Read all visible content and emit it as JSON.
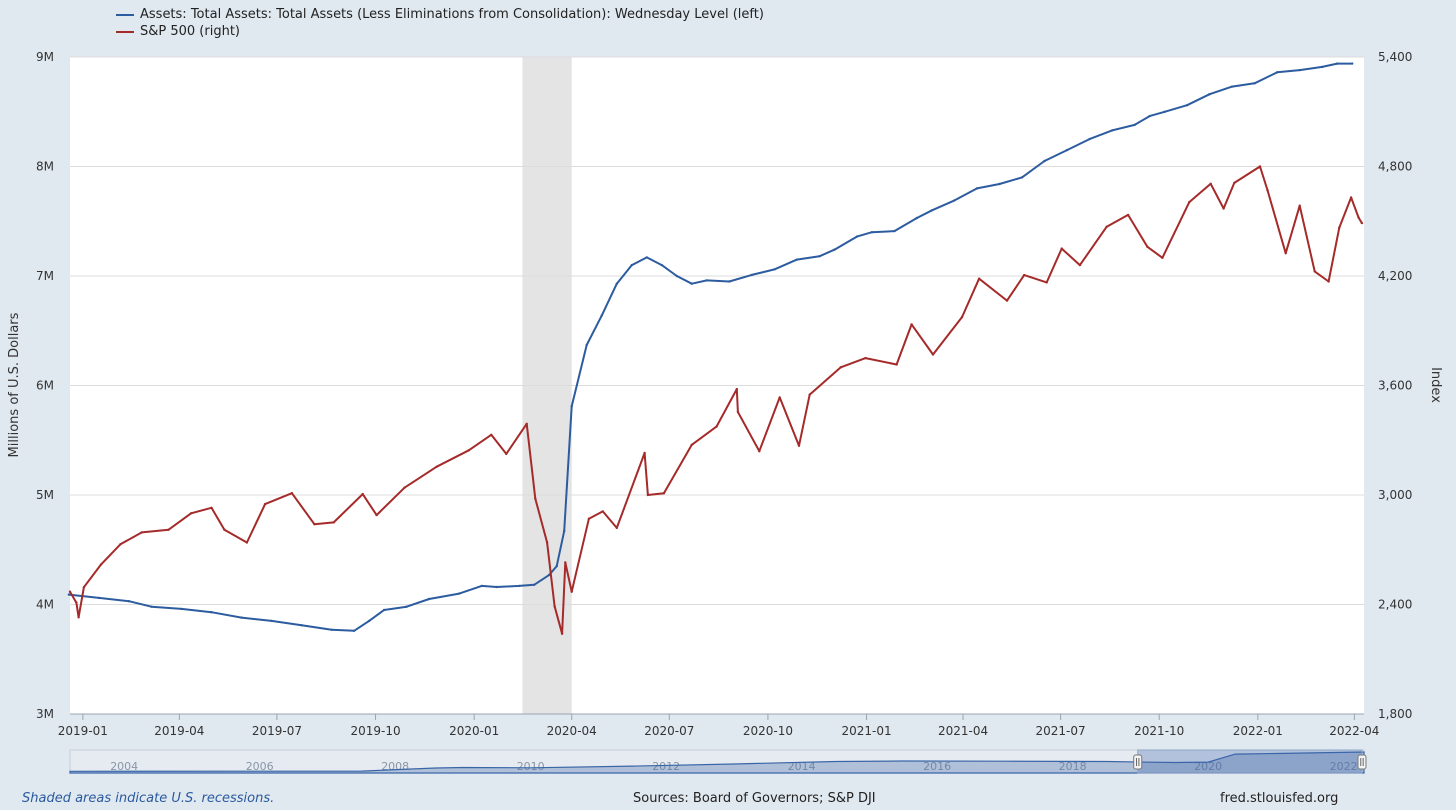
{
  "legend": [
    {
      "label": "Assets: Total Assets: Total Assets (Less Eliminations from Consolidation): Wednesday Level (left)",
      "color": "#2c5c9f"
    },
    {
      "label": "S&P 500 (right)",
      "color": "#a52a2a"
    }
  ],
  "footer": {
    "note": "Shaded areas indicate U.S. recessions.",
    "sources": "Sources: Board of Governors; S&P DJI",
    "site": "fred.stlouisfed.org"
  },
  "chart_data": {
    "type": "line",
    "title": "",
    "x_range": [
      "2018-12-20",
      "2022-04-10"
    ],
    "x_ticks": [
      {
        "date": "2019-01-01",
        "label": "2019-01"
      },
      {
        "date": "2019-04-01",
        "label": "2019-04"
      },
      {
        "date": "2019-07-01",
        "label": "2019-07"
      },
      {
        "date": "2019-10-01",
        "label": "2019-10"
      },
      {
        "date": "2020-01-01",
        "label": "2020-01"
      },
      {
        "date": "2020-04-01",
        "label": "2020-04"
      },
      {
        "date": "2020-07-01",
        "label": "2020-07"
      },
      {
        "date": "2020-10-01",
        "label": "2020-10"
      },
      {
        "date": "2021-01-01",
        "label": "2021-01"
      },
      {
        "date": "2021-04-01",
        "label": "2021-04"
      },
      {
        "date": "2021-07-01",
        "label": "2021-07"
      },
      {
        "date": "2021-10-01",
        "label": "2021-10"
      },
      {
        "date": "2022-01-01",
        "label": "2022-01"
      },
      {
        "date": "2022-04-01",
        "label": "2022-04"
      }
    ],
    "y_left": {
      "label": "Millions of U.S. Dollars",
      "ylim": [
        3,
        9
      ],
      "ticks": [
        {
          "v": 3,
          "label": "3M"
        },
        {
          "v": 4,
          "label": "4M"
        },
        {
          "v": 5,
          "label": "5M"
        },
        {
          "v": 6,
          "label": "6M"
        },
        {
          "v": 7,
          "label": "7M"
        },
        {
          "v": 8,
          "label": "8M"
        },
        {
          "v": 9,
          "label": "9M"
        }
      ]
    },
    "y_right": {
      "label": "Index",
      "ylim": [
        1800,
        5400
      ],
      "ticks": [
        {
          "v": 1800,
          "label": "1,800"
        },
        {
          "v": 2400,
          "label": "2,400"
        },
        {
          "v": 3000,
          "label": "3,000"
        },
        {
          "v": 3600,
          "label": "3,600"
        },
        {
          "v": 4200,
          "label": "4,200"
        },
        {
          "v": 4800,
          "label": "4,800"
        },
        {
          "v": 5400,
          "label": "5,400"
        }
      ]
    },
    "recession": {
      "start": "2020-02-15",
      "end": "2020-04-01"
    },
    "series": [
      {
        "name": "Assets: Total Assets: Total Assets (Less Eliminations from Consolidation): Wednesday Level (left)",
        "axis": "left",
        "color": "#2c5c9f",
        "points": [
          [
            "2018-12-19",
            4.09
          ],
          [
            "2019-01-16",
            4.06
          ],
          [
            "2019-02-13",
            4.03
          ],
          [
            "2019-03-06",
            3.98
          ],
          [
            "2019-04-03",
            3.96
          ],
          [
            "2019-05-01",
            3.93
          ],
          [
            "2019-05-29",
            3.88
          ],
          [
            "2019-06-26",
            3.85
          ],
          [
            "2019-07-24",
            3.81
          ],
          [
            "2019-08-21",
            3.77
          ],
          [
            "2019-09-11",
            3.76
          ],
          [
            "2019-09-25",
            3.85
          ],
          [
            "2019-10-09",
            3.95
          ],
          [
            "2019-10-30",
            3.98
          ],
          [
            "2019-11-20",
            4.05
          ],
          [
            "2019-12-18",
            4.1
          ],
          [
            "2020-01-08",
            4.17
          ],
          [
            "2020-01-22",
            4.16
          ],
          [
            "2020-02-12",
            4.17
          ],
          [
            "2020-02-26",
            4.18
          ],
          [
            "2020-03-11",
            4.27
          ],
          [
            "2020-03-18",
            4.35
          ],
          [
            "2020-03-25",
            4.67
          ],
          [
            "2020-04-01",
            5.81
          ],
          [
            "2020-04-15",
            6.37
          ],
          [
            "2020-04-29",
            6.64
          ],
          [
            "2020-05-13",
            6.93
          ],
          [
            "2020-05-27",
            7.1
          ],
          [
            "2020-06-10",
            7.17
          ],
          [
            "2020-06-24",
            7.1
          ],
          [
            "2020-07-08",
            7.0
          ],
          [
            "2020-07-22",
            6.93
          ],
          [
            "2020-08-05",
            6.96
          ],
          [
            "2020-08-26",
            6.95
          ],
          [
            "2020-09-16",
            7.01
          ],
          [
            "2020-10-07",
            7.06
          ],
          [
            "2020-10-28",
            7.15
          ],
          [
            "2020-11-18",
            7.18
          ],
          [
            "2020-12-02",
            7.24
          ],
          [
            "2020-12-23",
            7.36
          ],
          [
            "2021-01-06",
            7.4
          ],
          [
            "2021-01-27",
            7.41
          ],
          [
            "2021-02-17",
            7.53
          ],
          [
            "2021-03-03",
            7.6
          ],
          [
            "2021-03-24",
            7.69
          ],
          [
            "2021-04-14",
            7.8
          ],
          [
            "2021-05-05",
            7.84
          ],
          [
            "2021-05-26",
            7.9
          ],
          [
            "2021-06-16",
            8.05
          ],
          [
            "2021-07-07",
            8.15
          ],
          [
            "2021-07-28",
            8.25
          ],
          [
            "2021-08-18",
            8.33
          ],
          [
            "2021-09-08",
            8.38
          ],
          [
            "2021-09-22",
            8.46
          ],
          [
            "2021-10-06",
            8.5
          ],
          [
            "2021-10-27",
            8.56
          ],
          [
            "2021-11-17",
            8.66
          ],
          [
            "2021-12-08",
            8.73
          ],
          [
            "2021-12-29",
            8.76
          ],
          [
            "2022-01-19",
            8.86
          ],
          [
            "2022-02-09",
            8.88
          ],
          [
            "2022-03-02",
            8.91
          ],
          [
            "2022-03-16",
            8.94
          ],
          [
            "2022-03-30",
            8.94
          ]
        ]
      },
      {
        "name": "S&P 500 (right)",
        "axis": "right",
        "color": "#a52a2a",
        "points": [
          [
            "2018-12-20",
            2470
          ],
          [
            "2018-12-26",
            2410
          ],
          [
            "2018-12-28",
            2330
          ],
          [
            "2019-01-02",
            2495
          ],
          [
            "2019-01-18",
            2620
          ],
          [
            "2019-02-05",
            2730
          ],
          [
            "2019-02-25",
            2795
          ],
          [
            "2019-03-22",
            2810
          ],
          [
            "2019-04-12",
            2900
          ],
          [
            "2019-05-01",
            2930
          ],
          [
            "2019-05-13",
            2810
          ],
          [
            "2019-06-03",
            2740
          ],
          [
            "2019-06-20",
            2950
          ],
          [
            "2019-07-15",
            3010
          ],
          [
            "2019-08-05",
            2840
          ],
          [
            "2019-08-23",
            2850
          ],
          [
            "2019-09-19",
            3005
          ],
          [
            "2019-10-02",
            2890
          ],
          [
            "2019-10-28",
            3040
          ],
          [
            "2019-11-27",
            3155
          ],
          [
            "2019-12-27",
            3245
          ],
          [
            "2020-01-17",
            3330
          ],
          [
            "2020-01-31",
            3225
          ],
          [
            "2020-02-19",
            3390
          ],
          [
            "2020-02-27",
            2980
          ],
          [
            "2020-03-09",
            2740
          ],
          [
            "2020-03-16",
            2390
          ],
          [
            "2020-03-23",
            2240
          ],
          [
            "2020-03-26",
            2630
          ],
          [
            "2020-04-01",
            2470
          ],
          [
            "2020-04-17",
            2870
          ],
          [
            "2020-04-30",
            2910
          ],
          [
            "2020-05-13",
            2820
          ],
          [
            "2020-06-08",
            3230
          ],
          [
            "2020-06-11",
            3000
          ],
          [
            "2020-06-26",
            3010
          ],
          [
            "2020-07-22",
            3275
          ],
          [
            "2020-08-14",
            3375
          ],
          [
            "2020-09-02",
            3580
          ],
          [
            "2020-09-03",
            3455
          ],
          [
            "2020-09-23",
            3240
          ],
          [
            "2020-10-12",
            3535
          ],
          [
            "2020-10-30",
            3270
          ],
          [
            "2020-11-09",
            3550
          ],
          [
            "2020-12-08",
            3700
          ],
          [
            "2020-12-31",
            3750
          ],
          [
            "2021-01-29",
            3715
          ],
          [
            "2021-02-12",
            3935
          ],
          [
            "2021-03-04",
            3770
          ],
          [
            "2021-03-31",
            3975
          ],
          [
            "2021-04-16",
            4185
          ],
          [
            "2021-05-12",
            4065
          ],
          [
            "2021-05-28",
            4205
          ],
          [
            "2021-06-18",
            4165
          ],
          [
            "2021-07-02",
            4350
          ],
          [
            "2021-07-19",
            4260
          ],
          [
            "2021-08-13",
            4470
          ],
          [
            "2021-09-02",
            4535
          ],
          [
            "2021-09-20",
            4360
          ],
          [
            "2021-10-04",
            4300
          ],
          [
            "2021-10-29",
            4605
          ],
          [
            "2021-11-18",
            4705
          ],
          [
            "2021-11-30",
            4570
          ],
          [
            "2021-12-10",
            4710
          ],
          [
            "2022-01-03",
            4800
          ],
          [
            "2022-01-10",
            4670
          ],
          [
            "2022-01-27",
            4325
          ],
          [
            "2022-02-09",
            4585
          ],
          [
            "2022-02-23",
            4225
          ],
          [
            "2022-03-08",
            4170
          ],
          [
            "2022-03-18",
            4465
          ],
          [
            "2022-03-29",
            4630
          ],
          [
            "2022-04-05",
            4520
          ],
          [
            "2022-04-08",
            4490
          ]
        ]
      }
    ]
  },
  "navigator": {
    "years": [
      "2004",
      "2006",
      "2008",
      "2010",
      "2012",
      "2014",
      "2016",
      "2018",
      "2020",
      "2022"
    ],
    "series_points": [
      [
        2003.2,
        0.08
      ],
      [
        2007.5,
        0.09
      ],
      [
        2008.6,
        0.24
      ],
      [
        2009.0,
        0.26
      ],
      [
        2010.0,
        0.25
      ],
      [
        2011.5,
        0.33
      ],
      [
        2013.0,
        0.43
      ],
      [
        2014.5,
        0.55
      ],
      [
        2015.5,
        0.57
      ],
      [
        2017.0,
        0.56
      ],
      [
        2018.5,
        0.55
      ],
      [
        2019.5,
        0.5
      ],
      [
        2020.0,
        0.52
      ],
      [
        2020.4,
        0.9
      ],
      [
        2021.0,
        0.93
      ],
      [
        2022.3,
        1.0
      ]
    ],
    "range": [
      2003.2,
      2022.3
    ],
    "selected": [
      2018.96,
      2022.27
    ]
  }
}
